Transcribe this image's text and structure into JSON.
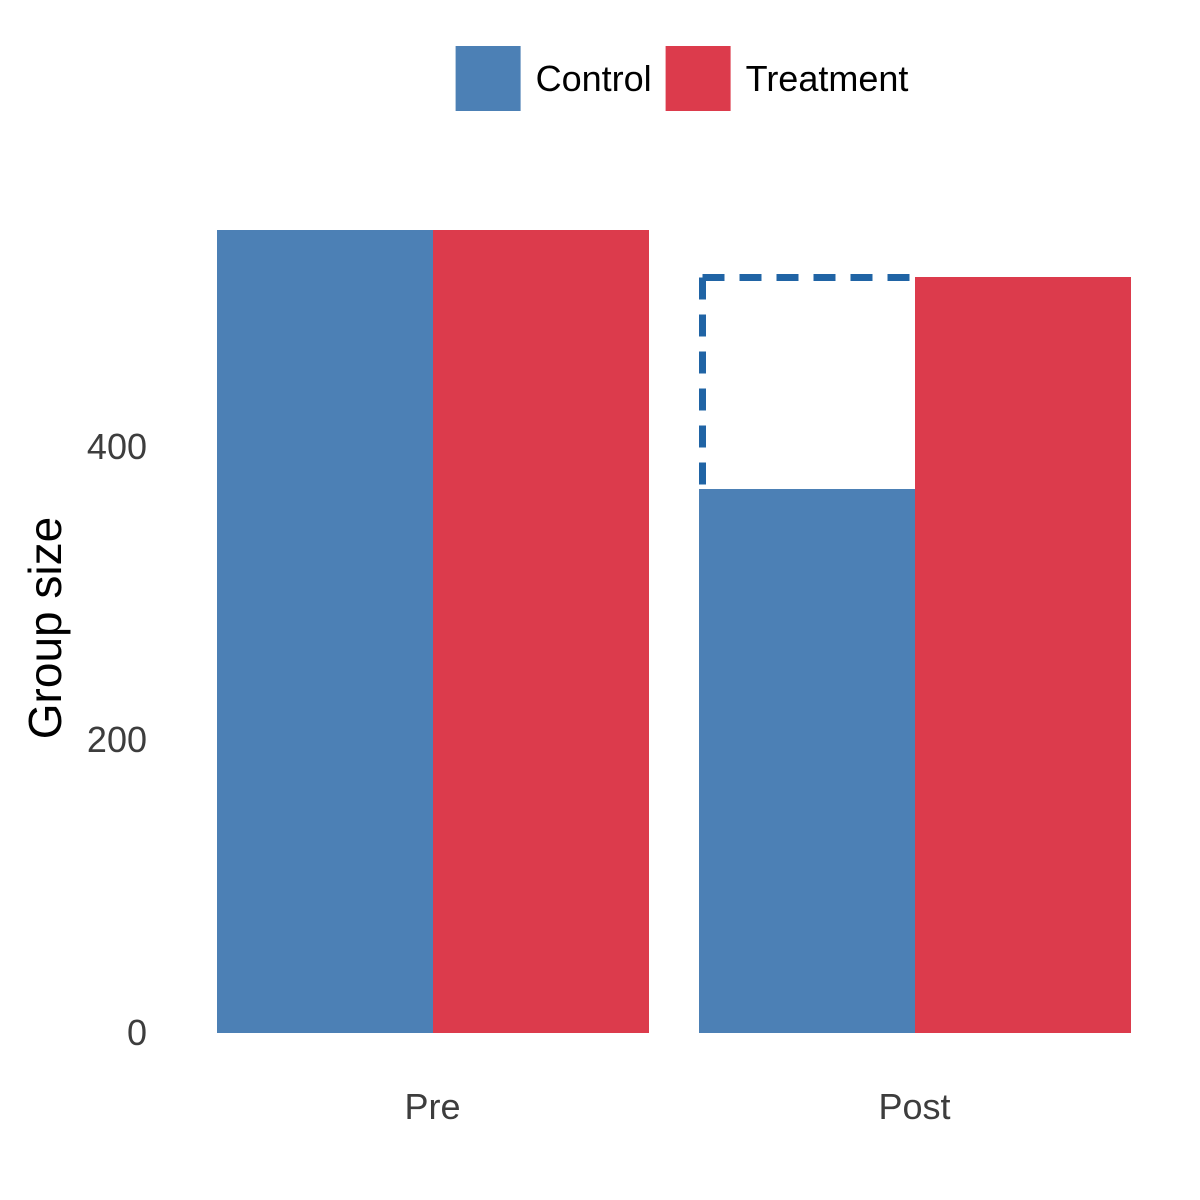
{
  "chart_data": {
    "type": "bar",
    "title": "",
    "xlabel": "",
    "ylabel": "Group size",
    "categories": [
      "Pre",
      "Post"
    ],
    "series": [
      {
        "name": "Control",
        "color": "#4c80b5",
        "values": [
          548,
          371
        ]
      },
      {
        "name": "Treatment",
        "color": "#dc3b4c",
        "values": [
          548,
          516
        ]
      }
    ],
    "yticks": [
      0,
      200,
      400
    ],
    "ylim": [
      0,
      560
    ],
    "grid": false,
    "axis_lines": false,
    "legend_position": "top",
    "tick_label_color": "#3d3d3d",
    "annotation": {
      "type": "dashed_rect",
      "description": "counterfactual control group size at Post",
      "category": "Post",
      "series": "Control",
      "value_top": 518,
      "value_bottom": 371,
      "line_color": "#2064a5",
      "line_style": "dashed",
      "visible_edges": [
        "top",
        "left"
      ]
    }
  }
}
